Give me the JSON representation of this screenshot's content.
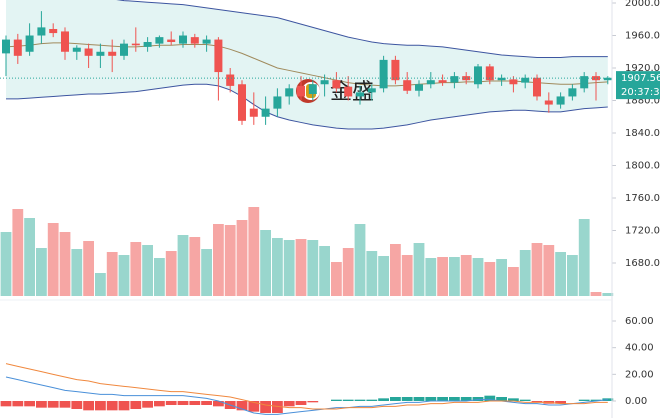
{
  "chart_data": [
    {
      "type": "candlestick",
      "watermark": "金盛",
      "open": [
        1938,
        1955,
        1940,
        1960,
        1968,
        1965,
        1940,
        1944,
        1935,
        1940,
        1935,
        1950,
        1946,
        1950,
        1955,
        1950,
        1958,
        1950,
        1955,
        1912,
        1900,
        1870,
        1860,
        1870,
        1885,
        1898,
        1888,
        1900,
        1905,
        1897,
        1885,
        1890,
        1895,
        1930,
        1905,
        1892,
        1900,
        1905,
        1902,
        1910,
        1900,
        1922,
        1905,
        1906,
        1902,
        1908,
        1880,
        1875,
        1885,
        1895,
        1910,
        1905
      ],
      "high": [
        1960,
        1962,
        1975,
        1990,
        1975,
        1970,
        1948,
        1950,
        1950,
        1955,
        1955,
        1970,
        1958,
        1960,
        1965,
        1965,
        1962,
        1960,
        1958,
        1920,
        1905,
        1890,
        1885,
        1895,
        1900,
        1910,
        1905,
        1912,
        1915,
        1910,
        1898,
        1900,
        1935,
        1935,
        1915,
        1905,
        1915,
        1912,
        1915,
        1915,
        1925,
        1925,
        1912,
        1910,
        1912,
        1912,
        1890,
        1890,
        1900,
        1915,
        1915,
        1910
      ],
      "low": [
        1910,
        1925,
        1935,
        1950,
        1958,
        1930,
        1930,
        1920,
        1920,
        1915,
        1930,
        1940,
        1940,
        1945,
        1948,
        1945,
        1945,
        1940,
        1880,
        1890,
        1850,
        1850,
        1850,
        1860,
        1875,
        1880,
        1880,
        1885,
        1890,
        1880,
        1875,
        1880,
        1890,
        1900,
        1888,
        1885,
        1895,
        1898,
        1895,
        1900,
        1895,
        1900,
        1898,
        1890,
        1895,
        1880,
        1865,
        1870,
        1880,
        1890,
        1880,
        1900
      ],
      "close": [
        1955,
        1935,
        1960,
        1970,
        1963,
        1940,
        1945,
        1935,
        1940,
        1935,
        1950,
        1948,
        1952,
        1958,
        1952,
        1960,
        1950,
        1955,
        1915,
        1898,
        1855,
        1860,
        1870,
        1885,
        1895,
        1885,
        1900,
        1905,
        1895,
        1885,
        1890,
        1895,
        1930,
        1905,
        1892,
        1900,
        1905,
        1902,
        1910,
        1905,
        1922,
        1905,
        1908,
        1900,
        1908,
        1885,
        1875,
        1885,
        1895,
        1910,
        1905,
        1908
      ],
      "up_color": "#26a69a",
      "down_color": "#ef5350",
      "series": [
        {
          "color": "#3d55a0",
          "values": [
            2010,
            2012,
            2013,
            2014,
            2014,
            2013,
            2012,
            2010,
            2008,
            2005,
            2003,
            2002,
            2001,
            2000,
            1999,
            1998,
            1996,
            1994,
            1992,
            1990,
            1988,
            1986,
            1984,
            1982,
            1978,
            1974,
            1970,
            1966,
            1962,
            1958,
            1955,
            1952,
            1950,
            1949,
            1948,
            1948,
            1947,
            1946,
            1944,
            1942,
            1940,
            1938,
            1936,
            1935,
            1934,
            1933,
            1933,
            1933,
            1934,
            1934,
            1934,
            1934
          ]
        },
        {
          "color": "#a08a5c",
          "values": [
            1946,
            1947,
            1948,
            1950,
            1951,
            1951,
            1950,
            1949,
            1948,
            1947,
            1946,
            1946,
            1947,
            1948,
            1948,
            1949,
            1949,
            1949,
            1947,
            1943,
            1938,
            1932,
            1926,
            1920,
            1917,
            1914,
            1911,
            1908,
            1905,
            1902,
            1900,
            1899,
            1898,
            1898,
            1899,
            1900,
            1901,
            1902,
            1902,
            1903,
            1903,
            1904,
            1904,
            1904,
            1903,
            1902,
            1901,
            1900,
            1900,
            1901,
            1902,
            1903
          ]
        },
        {
          "color": "#3d55a0",
          "values": [
            1882,
            1882,
            1883,
            1884,
            1885,
            1886,
            1887,
            1888,
            1888,
            1889,
            1890,
            1891,
            1893,
            1895,
            1897,
            1899,
            1900,
            1900,
            1898,
            1893,
            1885,
            1875,
            1866,
            1860,
            1856,
            1853,
            1850,
            1848,
            1846,
            1845,
            1845,
            1845,
            1846,
            1848,
            1850,
            1853,
            1856,
            1858,
            1860,
            1862,
            1864,
            1866,
            1867,
            1868,
            1868,
            1867,
            1866,
            1866,
            1868,
            1870,
            1871,
            1872
          ]
        }
      ],
      "band_fill": "#e3f4f3",
      "volume": [
        64,
        87,
        78,
        48,
        73,
        64,
        47,
        55,
        23,
        44,
        41,
        54,
        51,
        38,
        45,
        61,
        59,
        47,
        72,
        71,
        76,
        89,
        66,
        58,
        56,
        57,
        56,
        50,
        34,
        48,
        72,
        45,
        40,
        52,
        41,
        53,
        38,
        39,
        39,
        41,
        38,
        34,
        37,
        29,
        46,
        53,
        51,
        44,
        41,
        77,
        4,
        3
      ],
      "volume_up_color": "#99d6cd",
      "volume_down_color": "#f6a6a4",
      "y2lim": [
        0,
        296
      ],
      "ylim": [
        1639.4,
        2003.7
      ],
      "yticks": [
        {
          "value": 2000,
          "label": "2000.00"
        },
        {
          "value": 1960,
          "label": "1960.00"
        },
        {
          "value": 1920,
          "label": "1920.00"
        },
        {
          "value": 1880,
          "label": "1880.00"
        },
        {
          "value": 1840,
          "label": "1840.00"
        },
        {
          "value": 1800,
          "label": "1800.00"
        },
        {
          "value": 1760,
          "label": "1760.00"
        },
        {
          "value": 1720,
          "label": "1720.00"
        },
        {
          "value": 1680,
          "label": "1680.00"
        }
      ],
      "last_price": 1907.56,
      "countdown": "20:37:31"
    },
    {
      "type": "macd",
      "histogram": [
        -4,
        -4,
        -4,
        -5,
        -5,
        -5,
        -6,
        -7,
        -7,
        -7,
        -7,
        -6,
        -5,
        -4,
        -3,
        -3,
        -3,
        -3,
        -4,
        -6,
        -7,
        -8,
        -9,
        -9,
        -4,
        -3,
        -1,
        0,
        1,
        1,
        1,
        1,
        2,
        3,
        3,
        3,
        3,
        3,
        3,
        3,
        3,
        4,
        3,
        2,
        1,
        -1,
        -2,
        -2,
        0,
        1,
        1,
        2
      ],
      "up_color": "#26a69a",
      "down_color": "#ef5350",
      "series": [
        {
          "color": "#4a90d9",
          "values": [
            18,
            16,
            14,
            12,
            10,
            8,
            7,
            6,
            5,
            5,
            4,
            4,
            4,
            4,
            4,
            4,
            3,
            2,
            0,
            -3,
            -6,
            -9,
            -10,
            -10,
            -9,
            -8,
            -7,
            -6,
            -5,
            -5,
            -4,
            -4,
            -3,
            -2,
            -1,
            -1,
            0,
            0,
            0,
            0,
            1,
            1,
            0,
            -1,
            -2,
            -2,
            -3,
            -3,
            -2,
            -1,
            0,
            1
          ]
        },
        {
          "color": "#f0883e",
          "values": [
            28,
            26,
            24,
            22,
            20,
            18,
            16,
            15,
            13,
            12,
            11,
            10,
            9,
            8,
            7,
            7,
            6,
            5,
            4,
            3,
            1,
            -1,
            -3,
            -4,
            -5,
            -5,
            -6,
            -6,
            -6,
            -5,
            -5,
            -5,
            -4,
            -4,
            -3,
            -3,
            -2,
            -2,
            -1,
            -1,
            -1,
            0,
            0,
            0,
            -1,
            -1,
            -1,
            -2,
            -2,
            -2,
            -1,
            -1
          ]
        }
      ],
      "ylim": [
        -12.75,
        72
      ],
      "yticks": [
        {
          "value": 60,
          "label": "60.00"
        },
        {
          "value": 40,
          "label": "40.00"
        },
        {
          "value": 20,
          "label": "20.00"
        },
        {
          "value": 0,
          "label": "0.00"
        }
      ]
    }
  ]
}
